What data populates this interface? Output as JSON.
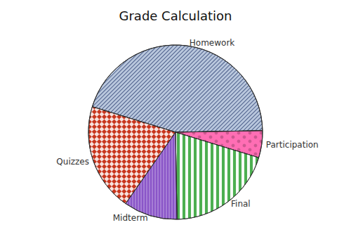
{
  "chart_data": {
    "type": "pie",
    "title": "Grade Calculation",
    "categories": [
      "Homework",
      "Participation",
      "Final",
      "Midterm",
      "Quizzes"
    ],
    "values": [
      45,
      5,
      20,
      10,
      20
    ],
    "colors": [
      "#b9c7dd",
      "#ff6eb4",
      "#4caf50",
      "#8a55c8",
      "#c8361e"
    ]
  }
}
